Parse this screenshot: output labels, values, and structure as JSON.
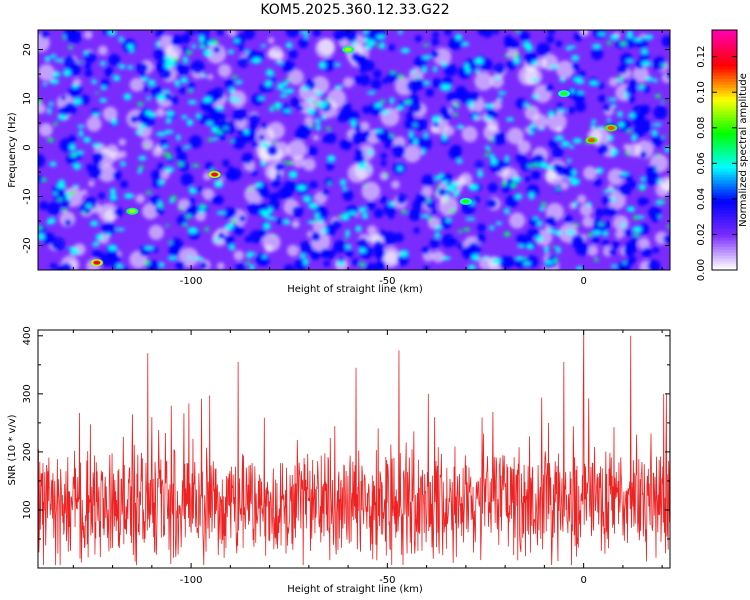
{
  "title": "KOM5.2025.360.12.33.G22",
  "colors": {
    "snr_line": "#ee2222",
    "axes": "#000000",
    "background": "#ffffff"
  },
  "chart_data": [
    {
      "type": "heatmap",
      "xlabel": "Height of straight line (km)",
      "ylabel": "Frequency (Hz)",
      "xlim": [
        -139,
        22
      ],
      "ylim": [
        -25,
        24
      ],
      "xticks": [
        -100,
        -50,
        0
      ],
      "yticks": [
        -20,
        -10,
        0,
        10,
        20
      ],
      "colorbar": {
        "label": "Normalized spectral amplitude",
        "range": [
          0,
          0.135
        ],
        "ticks": [
          0.0,
          0.02,
          0.04,
          0.06,
          0.08,
          0.1,
          0.12
        ],
        "tick_labels": [
          "0.00",
          "0.02",
          "0.04",
          "0.06",
          "0.08",
          "0.10",
          "0.12"
        ],
        "colormap": [
          "#ffffff",
          "#7a2cff",
          "#0000ff",
          "#00ffff",
          "#00ff00",
          "#ffff00",
          "#ff0000",
          "#ff00aa"
        ]
      },
      "hotspots": [
        {
          "x": -94,
          "y": -5.5,
          "value": 0.12
        },
        {
          "x": -124,
          "y": -23.5,
          "value": 0.12
        },
        {
          "x": 2,
          "y": 1.5,
          "value": 0.11
        },
        {
          "x": 7,
          "y": 4.0,
          "value": 0.11
        },
        {
          "x": -60,
          "y": 20,
          "value": 0.09
        },
        {
          "x": -115,
          "y": -13,
          "value": 0.09
        },
        {
          "x": -30,
          "y": -11,
          "value": 0.08
        },
        {
          "x": -5,
          "y": 11,
          "value": 0.08
        }
      ]
    },
    {
      "type": "line",
      "xlabel": "Height of straight line (km)",
      "ylabel": "SNR (10 * v/v)",
      "xlim": [
        -139,
        22
      ],
      "ylim": [
        0,
        410
      ],
      "xticks": [
        -100,
        -50,
        0
      ],
      "yticks": [
        100,
        200,
        300,
        400
      ],
      "series": [
        {
          "name": "SNR",
          "baseline": 110,
          "typical_range": [
            10,
            260
          ],
          "peaks": [
            {
              "x": -111,
              "y": 370
            },
            {
              "x": -88,
              "y": 355
            },
            {
              "x": -58,
              "y": 345
            },
            {
              "x": -47,
              "y": 375
            },
            {
              "x": -5,
              "y": 355
            },
            {
              "x": 0,
              "y": 410
            },
            {
              "x": 12,
              "y": 400
            },
            {
              "x": 22,
              "y": 345
            }
          ]
        }
      ]
    }
  ]
}
